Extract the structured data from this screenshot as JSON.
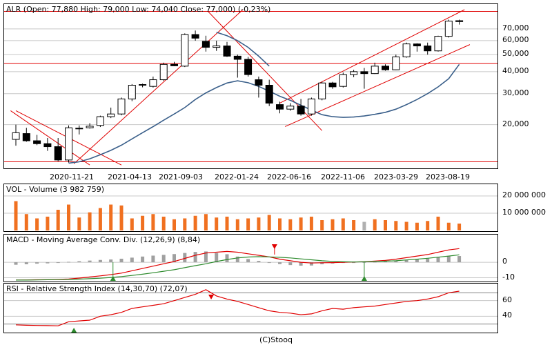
{
  "footer": {
    "copyright": "(C)Stooq"
  },
  "colors": {
    "up_candle": "#ffffff",
    "down_candle": "#000000",
    "trend_line": "#e00000",
    "moving_average": "#3a5f8a",
    "volume_bar": "#f07020",
    "volume_bar_alt": "#b0b0b0",
    "macd_line": "#e00000",
    "signal_line": "#2e8b2e",
    "histogram": "#a0a0a0",
    "rsi_line": "#e00000",
    "grid": "#c8c8c8"
  },
  "chart_data": [
    {
      "type": "candlestick",
      "panel": "price",
      "title": "ALR (Open: 77,880  High: 79,000  Low: 74,040  Close: 77,000) (-0,23%)",
      "scale": "log",
      "y_ticks": [
        "20,000",
        "30,000",
        "40,000",
        "50,000",
        "60,000",
        "70,000"
      ],
      "y_tick_values": [
        20000,
        30000,
        40000,
        50000,
        60000,
        70000
      ],
      "x_ticks": [
        "2020-11-21",
        "2021-04-13",
        "2021-09-03",
        "2022-01-24",
        "2022-06-16",
        "2022-11-06",
        "2023-03-29",
        "2023-08-19"
      ],
      "ylim": [
        11500,
        95000
      ],
      "candles": [
        {
          "o": 16500,
          "h": 20000,
          "l": 15200,
          "c": 18000
        },
        {
          "o": 17800,
          "h": 19200,
          "l": 16000,
          "c": 16200
        },
        {
          "o": 16200,
          "h": 17500,
          "l": 15300,
          "c": 15600
        },
        {
          "o": 15600,
          "h": 16800,
          "l": 14200,
          "c": 15000
        },
        {
          "o": 15000,
          "h": 16800,
          "l": 12400,
          "c": 12600
        },
        {
          "o": 12600,
          "h": 19800,
          "l": 12200,
          "c": 19200
        },
        {
          "o": 19000,
          "h": 19800,
          "l": 17600,
          "c": 19100
        },
        {
          "o": 19200,
          "h": 20400,
          "l": 19000,
          "c": 19600
        },
        {
          "o": 19800,
          "h": 22500,
          "l": 19400,
          "c": 22200
        },
        {
          "o": 22200,
          "h": 25000,
          "l": 21800,
          "c": 23000
        },
        {
          "o": 23000,
          "h": 28500,
          "l": 22600,
          "c": 28000
        },
        {
          "o": 28000,
          "h": 34000,
          "l": 27200,
          "c": 33500
        },
        {
          "o": 33500,
          "h": 34200,
          "l": 32600,
          "c": 33800
        },
        {
          "o": 33000,
          "h": 37500,
          "l": 32500,
          "c": 36000
        },
        {
          "o": 36000,
          "h": 45000,
          "l": 35500,
          "c": 44000
        },
        {
          "o": 44000,
          "h": 45500,
          "l": 43000,
          "c": 43200
        },
        {
          "o": 43000,
          "h": 66000,
          "l": 42500,
          "c": 65000
        },
        {
          "o": 65000,
          "h": 68500,
          "l": 60000,
          "c": 62000
        },
        {
          "o": 59500,
          "h": 64000,
          "l": 52000,
          "c": 55000
        },
        {
          "o": 55000,
          "h": 60000,
          "l": 52500,
          "c": 56000
        },
        {
          "o": 56000,
          "h": 59000,
          "l": 48500,
          "c": 49000
        },
        {
          "o": 49000,
          "h": 50000,
          "l": 37000,
          "c": 47000
        },
        {
          "o": 47000,
          "h": 48500,
          "l": 37500,
          "c": 38500
        },
        {
          "o": 36000,
          "h": 37500,
          "l": 28500,
          "c": 33500
        },
        {
          "o": 33500,
          "h": 36000,
          "l": 25500,
          "c": 26500
        },
        {
          "o": 26000,
          "h": 27000,
          "l": 23200,
          "c": 24500
        },
        {
          "o": 24500,
          "h": 26500,
          "l": 24000,
          "c": 25500
        },
        {
          "o": 25500,
          "h": 28000,
          "l": 22500,
          "c": 23000
        },
        {
          "o": 23000,
          "h": 28500,
          "l": 22500,
          "c": 28000
        },
        {
          "o": 28000,
          "h": 35000,
          "l": 27500,
          "c": 34500
        },
        {
          "o": 34500,
          "h": 35000,
          "l": 32000,
          "c": 32800
        },
        {
          "o": 33000,
          "h": 39500,
          "l": 32500,
          "c": 38500
        },
        {
          "o": 38500,
          "h": 41000,
          "l": 37200,
          "c": 40000
        },
        {
          "o": 40000,
          "h": 42000,
          "l": 32000,
          "c": 39000
        },
        {
          "o": 39000,
          "h": 45000,
          "l": 38800,
          "c": 43000
        },
        {
          "o": 43000,
          "h": 44000,
          "l": 40500,
          "c": 41000
        },
        {
          "o": 41000,
          "h": 50000,
          "l": 40800,
          "c": 48500
        },
        {
          "o": 48500,
          "h": 58500,
          "l": 48000,
          "c": 57500
        },
        {
          "o": 57500,
          "h": 58000,
          "l": 52000,
          "c": 56000
        },
        {
          "o": 56000,
          "h": 58500,
          "l": 50000,
          "c": 52500
        },
        {
          "o": 52500,
          "h": 64000,
          "l": 52000,
          "c": 63500
        },
        {
          "o": 63500,
          "h": 79000,
          "l": 62500,
          "c": 77500
        },
        {
          "o": 77880,
          "h": 79000,
          "l": 74040,
          "c": 77000
        }
      ],
      "moving_average": [
        null,
        null,
        null,
        null,
        null,
        12100,
        12300,
        12800,
        13500,
        14300,
        15300,
        16600,
        18000,
        19500,
        21200,
        23000,
        25000,
        27800,
        30300,
        32500,
        34500,
        35500,
        34600,
        33000,
        31000,
        29000,
        27500,
        25800,
        24200,
        22800,
        22200,
        22000,
        22100,
        22400,
        22900,
        23500,
        24500,
        26000,
        27800,
        30000,
        32800,
        36500,
        44000
      ],
      "long_moving_average": [
        null,
        null,
        null,
        null,
        null,
        null,
        null,
        null,
        null,
        null,
        null,
        null,
        null,
        null,
        null,
        null,
        null,
        null,
        null,
        67000,
        64000,
        60000,
        55000,
        49000,
        43000,
        null,
        null,
        null,
        null,
        null,
        null,
        null,
        null,
        null,
        null,
        null,
        null,
        null,
        null,
        null,
        null,
        null,
        null
      ],
      "horizontal_lines": [
        12300,
        44500,
        88000
      ],
      "trend_lines": [
        {
          "from": [
            0,
            24000
          ],
          "to": [
            10,
            11800
          ]
        },
        {
          "from": [
            -0.5,
            24000
          ],
          "to": [
            7,
            11800
          ]
        },
        {
          "from": [
            5.5,
            12000
          ],
          "to": [
            21.5,
            90000
          ]
        },
        {
          "from": [
            18.2,
            88000
          ],
          "to": [
            29,
            18500
          ]
        },
        {
          "from": [
            25,
            26500
          ],
          "to": [
            42.5,
            90000
          ]
        },
        {
          "from": [
            25.5,
            19500
          ],
          "to": [
            43,
            57000
          ]
        }
      ]
    },
    {
      "type": "bar",
      "panel": "volume",
      "title": "VOL - Volume (3 982 759)",
      "y_ticks": [
        "10 000 000",
        "20 000 000"
      ],
      "y_tick_values": [
        10000000,
        20000000
      ],
      "ylim": [
        0,
        26000000
      ],
      "values": [
        17000000,
        9500000,
        7000000,
        8000000,
        12000000,
        15000000,
        7500000,
        10500000,
        13000000,
        15000000,
        14500000,
        7000000,
        8500000,
        9500000,
        8000000,
        6500000,
        7000000,
        8500000,
        9500000,
        7500000,
        8000000,
        6500000,
        7000000,
        7500000,
        9000000,
        7000000,
        6500000,
        7500000,
        8000000,
        6000000,
        6500000,
        7000000,
        6000000,
        5000000,
        6500000,
        6000000,
        5500000,
        5000000,
        4500000,
        5500000,
        8000000,
        4500000,
        3982759
      ],
      "alt_color_index": [
        33
      ]
    },
    {
      "type": "line",
      "panel": "macd",
      "title": "MACD - Moving Average Conv. Div. (12,26,9) (8,84)",
      "y_ticks": [
        "-10",
        "0"
      ],
      "y_tick_values": [
        -10,
        0
      ],
      "ylim": [
        -12,
        17
      ],
      "series": [
        {
          "role": "macd",
          "values": [
            -11.5,
            -11.4,
            -11.3,
            -11.2,
            -11.0,
            -10.8,
            -10.2,
            -9.5,
            -8.8,
            -8.0,
            -7.0,
            -5.5,
            -4.0,
            -2.5,
            -1.0,
            0.5,
            2.5,
            4.5,
            6.0,
            6.5,
            7.0,
            6.5,
            5.5,
            4.5,
            3.5,
            2.0,
            1.0,
            0,
            -0.5,
            -0.3,
            -0.2,
            0,
            0.2,
            0.4,
            0.8,
            1.2,
            2.0,
            3.0,
            4.0,
            5.0,
            6.5,
            8.0,
            8.84
          ]
        },
        {
          "role": "signal",
          "values": [
            -11.5,
            -11.5,
            -11.4,
            -11.3,
            -11.2,
            -11.1,
            -10.9,
            -10.6,
            -10.3,
            -9.8,
            -9.3,
            -8.5,
            -7.7,
            -6.8,
            -5.8,
            -4.8,
            -3.5,
            -2.2,
            -1.0,
            0.5,
            1.8,
            2.8,
            3.4,
            3.6,
            3.5,
            3.2,
            2.8,
            2.2,
            1.6,
            1.0,
            0.6,
            0.3,
            0.2,
            0.3,
            0.5,
            0.7,
            1.0,
            1.5,
            2.0,
            2.6,
            3.3,
            4.0,
            4.8
          ]
        }
      ],
      "histogram": [
        -1.6,
        -1.3,
        -0.9,
        -0.7,
        -0.3,
        0.3,
        0.7,
        1.1,
        1.5,
        1.8,
        2.3,
        3.0,
        3.7,
        4.3,
        4.8,
        5.3,
        6.0,
        6.7,
        7.0,
        6.0,
        5.2,
        3.7,
        2.1,
        0.9,
        0,
        -1.2,
        -1.8,
        -2.2,
        -2.1,
        -1.3,
        -0.8,
        -0.3,
        0,
        0.1,
        0.3,
        0.5,
        1.0,
        1.5,
        2.0,
        2.4,
        3.2,
        4.0,
        4.04
      ],
      "markers": [
        {
          "index": 9.2,
          "type": "buy"
        },
        {
          "index": 24.5,
          "type": "sell"
        },
        {
          "index": 33,
          "type": "buy"
        }
      ]
    },
    {
      "type": "line",
      "panel": "rsi",
      "title": "RSI - Relative Strength Index (14,30,70) (72,07)",
      "y_ticks": [
        "40",
        "60"
      ],
      "y_tick_values": [
        40,
        60
      ],
      "ylim": [
        20,
        80
      ],
      "bands": [
        30,
        70
      ],
      "values": [
        29,
        28.5,
        28.2,
        28,
        27.8,
        33,
        34,
        35,
        40,
        42,
        45,
        50,
        52,
        54,
        56,
        60,
        64,
        68,
        74,
        66,
        62,
        59,
        55,
        51,
        47,
        45,
        44,
        42,
        43,
        47,
        50,
        49,
        51,
        52,
        53,
        55,
        57,
        59,
        60,
        62,
        65,
        70,
        72.07
      ],
      "markers": [
        {
          "index": 5.5,
          "type": "buy"
        },
        {
          "index": 18.5,
          "type": "sell"
        }
      ]
    }
  ]
}
